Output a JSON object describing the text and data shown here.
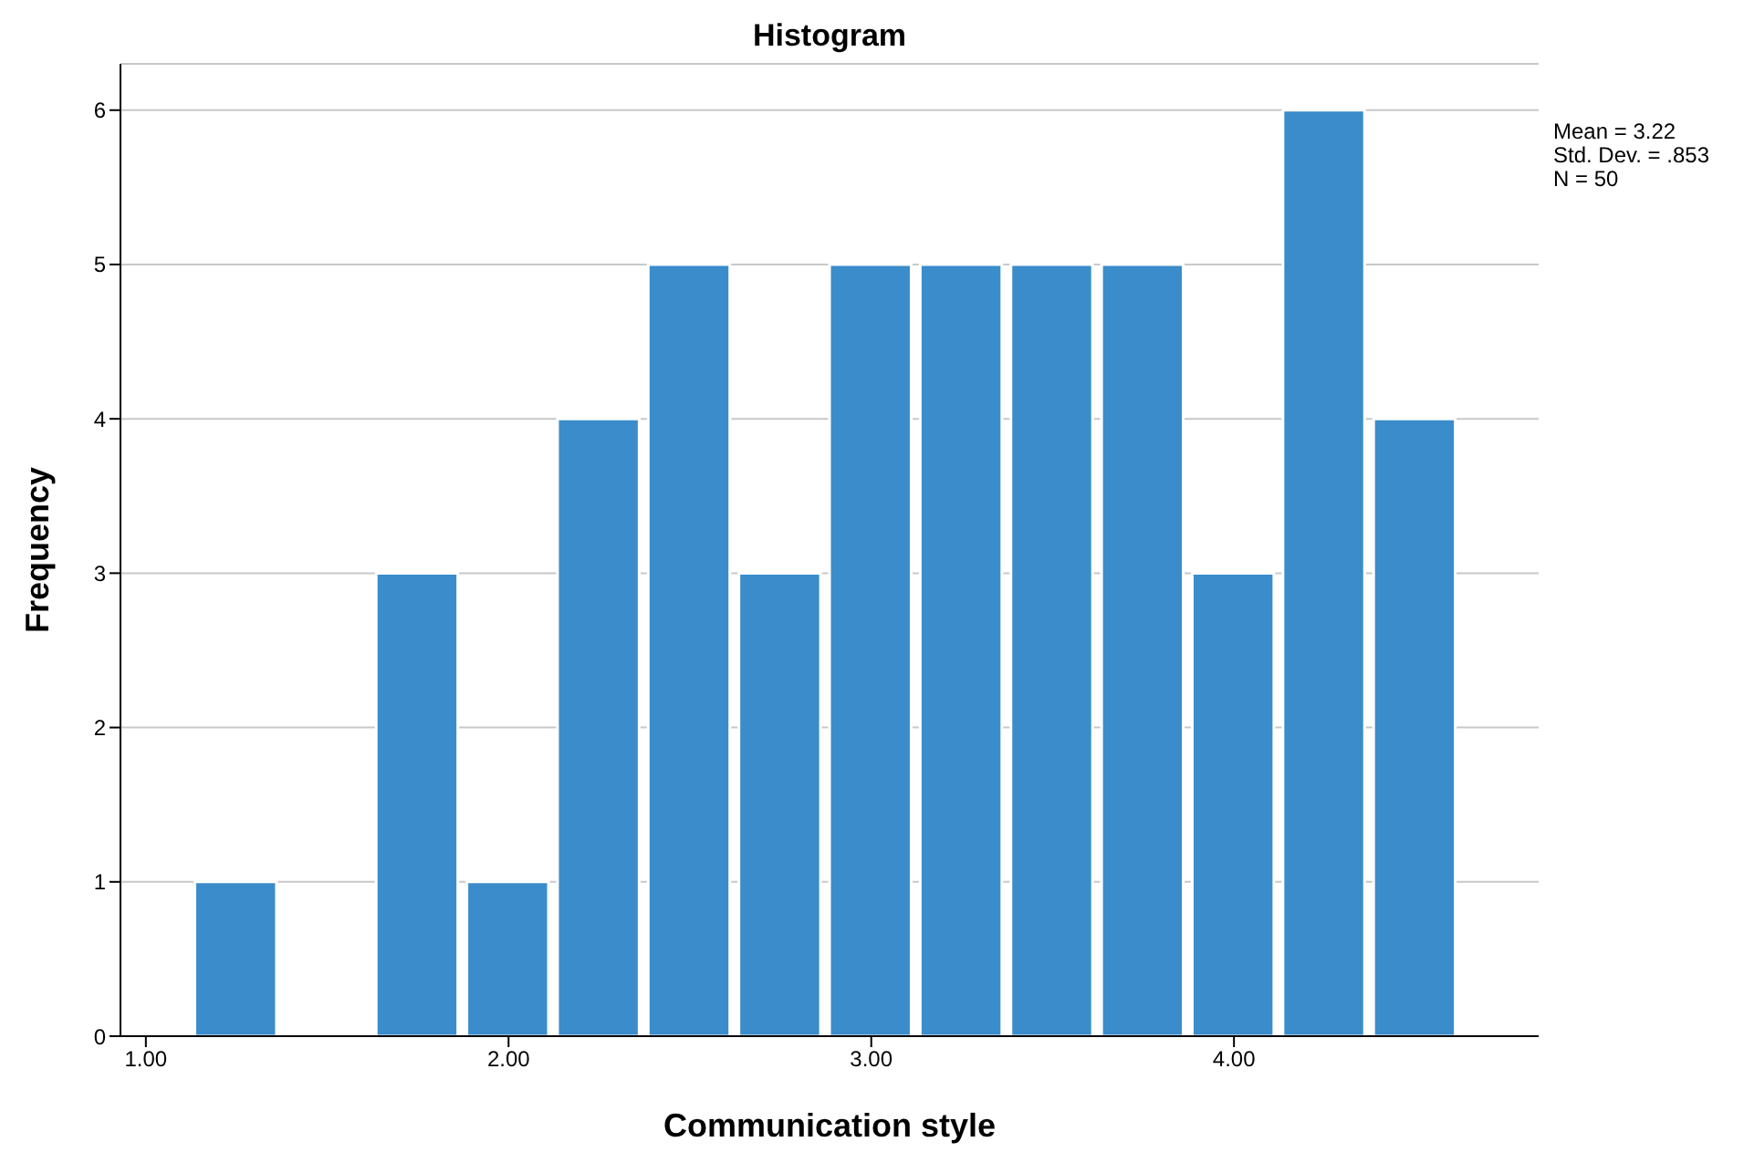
{
  "chart_data": {
    "type": "histogram",
    "title": "Histogram",
    "xlabel": "Communication style",
    "ylabel": "Frequency",
    "bins": [
      1.125,
      1.375,
      1.625,
      1.875,
      2.125,
      2.375,
      2.625,
      2.875,
      3.125,
      3.375,
      3.625,
      3.875,
      4.125,
      4.375,
      4.625
    ],
    "values": [
      1,
      0,
      3,
      1,
      4,
      5,
      3,
      5,
      5,
      5,
      5,
      3,
      6,
      4
    ],
    "color": "#3a8ccb",
    "xlim": [
      0.93,
      4.84
    ],
    "xticks": [
      {
        "value": 1,
        "label": "1.00"
      },
      {
        "value": 2,
        "label": "2.00"
      },
      {
        "value": 3,
        "label": "3.00"
      },
      {
        "value": 4,
        "label": "4.00"
      }
    ],
    "ylim": [
      0,
      6.3
    ],
    "yticks": [
      0,
      1,
      2,
      3,
      4,
      5,
      6
    ],
    "grid": "y",
    "annotations": [
      "Mean = 3.22",
      "Std. Dev. = .853",
      "N = 50"
    ]
  }
}
